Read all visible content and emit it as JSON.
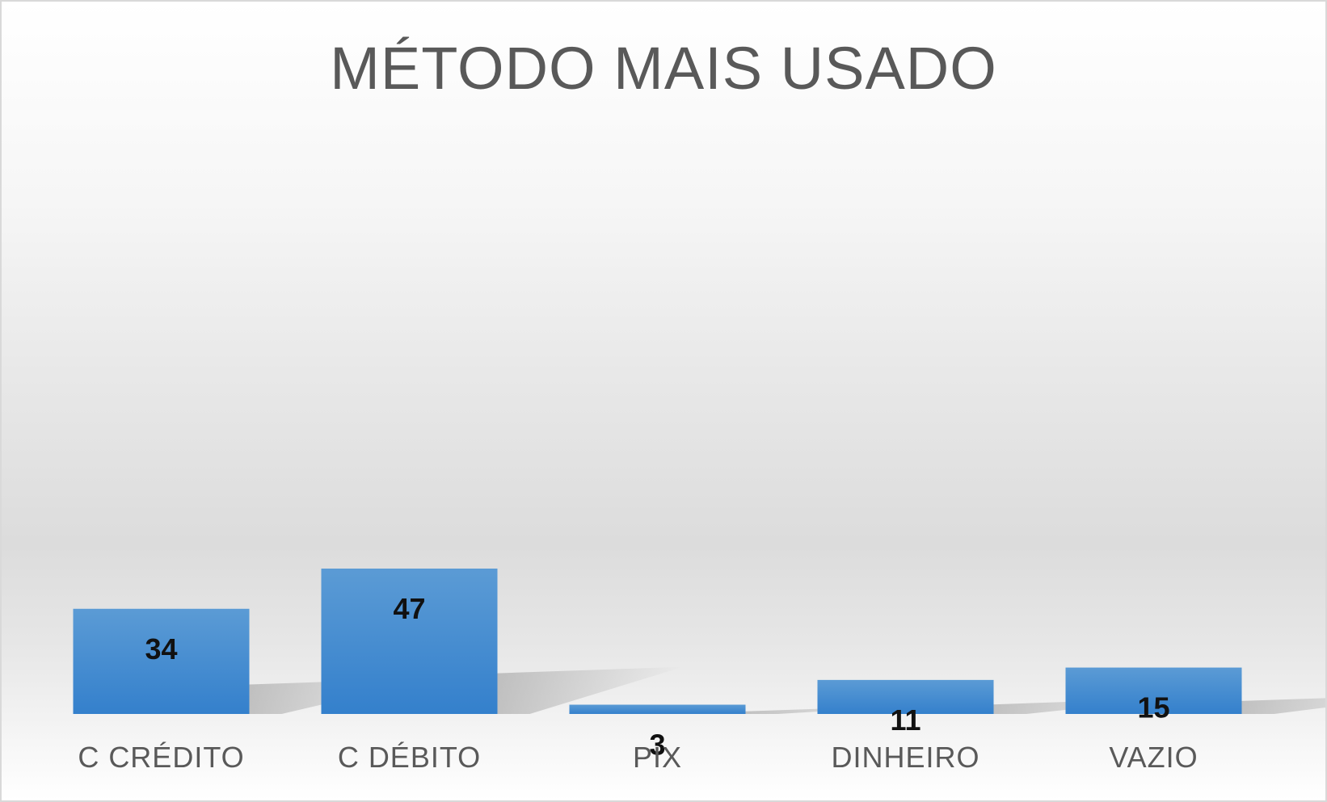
{
  "chart_data": {
    "type": "bar",
    "title": "MÉTODO MAIS USADO",
    "categories": [
      "C CRÉDITO",
      "C DÉBITO",
      "PIX",
      "DINHEIRO",
      "VAZIO"
    ],
    "values": [
      34,
      47,
      3,
      11,
      15
    ],
    "data_labels": [
      "34",
      "47",
      "3",
      "11",
      "15"
    ],
    "xlabel": "",
    "ylabel": "",
    "ylim": [
      0,
      50
    ],
    "grid": false,
    "legend": "none",
    "bar_color_top": "#5b9bd5",
    "bar_color_bottom": "#3480cc"
  }
}
